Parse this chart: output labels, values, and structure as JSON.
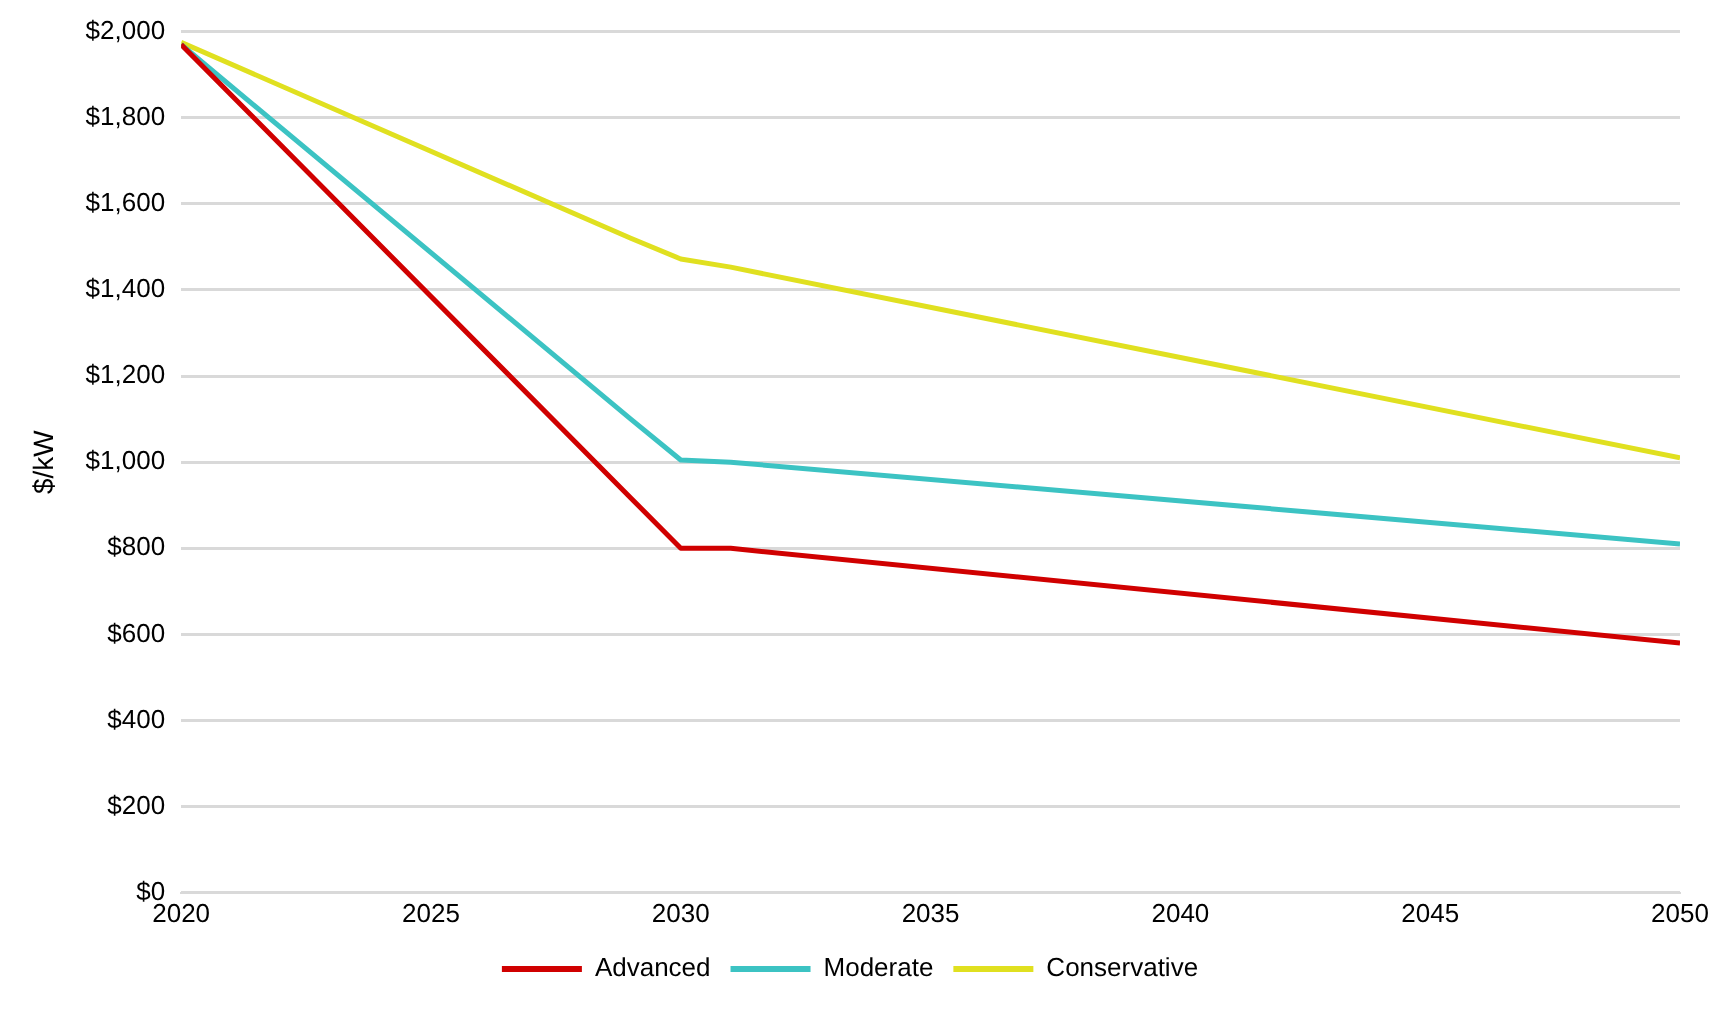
{
  "chart_data": {
    "type": "line",
    "ylabel": "$/kW",
    "x": [
      2020,
      2029,
      2030,
      2031,
      2050
    ],
    "series": [
      {
        "name": "Advanced",
        "color": "#d00000",
        "values": [
          1970,
          917,
          800,
          800,
          580
        ]
      },
      {
        "name": "Moderate",
        "color": "#3cc3c3",
        "values": [
          1970,
          1100,
          1005,
          1000,
          810
        ]
      },
      {
        "name": "Conservative",
        "color": "#e0e020",
        "values": [
          1975,
          1520,
          1472,
          1453,
          1010
        ]
      }
    ],
    "xlim": [
      2020,
      2050
    ],
    "xticks": [
      2020,
      2025,
      2030,
      2035,
      2040,
      2045,
      2050
    ],
    "ylim": [
      0,
      2000
    ],
    "yticks": [
      {
        "value": 0,
        "label": "$0"
      },
      {
        "value": 200,
        "label": "$200"
      },
      {
        "value": 400,
        "label": "$400"
      },
      {
        "value": 600,
        "label": "$600"
      },
      {
        "value": 800,
        "label": "$800"
      },
      {
        "value": 1000,
        "label": "$1,000"
      },
      {
        "value": 1200,
        "label": "$1,200"
      },
      {
        "value": 1400,
        "label": "$1,400"
      },
      {
        "value": 1600,
        "label": "$1,600"
      },
      {
        "value": 1800,
        "label": "$1,800"
      },
      {
        "value": 2000,
        "label": "$2,000"
      }
    ],
    "grid": "y",
    "legend": "bottom",
    "marker": "none",
    "line_style": "solid"
  }
}
